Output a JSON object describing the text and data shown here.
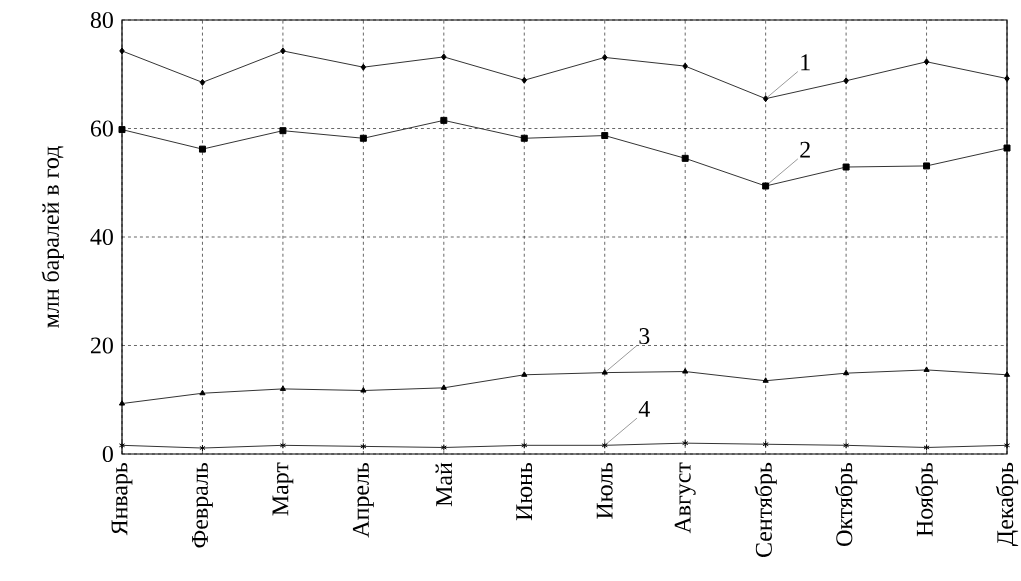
{
  "chart_data": {
    "type": "line",
    "ylabel": "млн баралей в год",
    "categories": [
      "Январь",
      "Февраль",
      "Март",
      "Апрель",
      "Май",
      "Июнь",
      "Июль",
      "Август",
      "Сентябрь",
      "Октябрь",
      "Ноябрь",
      "Декабрь"
    ],
    "series": [
      {
        "color": "#333333",
        "marker": "diamond",
        "values": [
          74.3,
          68.5,
          74.3,
          71.3,
          73.2,
          68.9,
          73.1,
          71.5,
          65.5,
          68.8,
          72.3,
          69.2
        ]
      },
      {
        "color": "#333333",
        "marker": "square",
        "values": [
          59.8,
          56.2,
          59.6,
          58.2,
          61.5,
          58.2,
          58.7,
          54.5,
          49.4,
          52.9,
          53.1,
          56.4
        ]
      },
      {
        "color": "#333333",
        "marker": "triangle",
        "values": [
          9.3,
          11.2,
          12.0,
          11.7,
          12.2,
          14.6,
          15.0,
          15.2,
          13.5,
          14.9,
          15.5,
          14.6
        ]
      },
      {
        "color": "#333333",
        "marker": "cross",
        "values": [
          1.6,
          1.1,
          1.6,
          1.4,
          1.2,
          1.6,
          1.6,
          2.0,
          1.8,
          1.6,
          1.2,
          1.6
        ]
      }
    ],
    "ylim": [
      0,
      80
    ],
    "yticks": [
      0,
      20,
      40,
      60,
      80
    ],
    "grid": true,
    "line_style": "solid",
    "annotations": [
      {
        "text": "1",
        "x": "Сентябрь",
        "y": 65.5
      },
      {
        "text": "2",
        "x": "Сентябрь",
        "y": 49.4
      },
      {
        "text": "3",
        "x": "Июль",
        "y": 15.0
      },
      {
        "text": "4",
        "x": "Июль",
        "y": 1.6
      }
    ]
  }
}
